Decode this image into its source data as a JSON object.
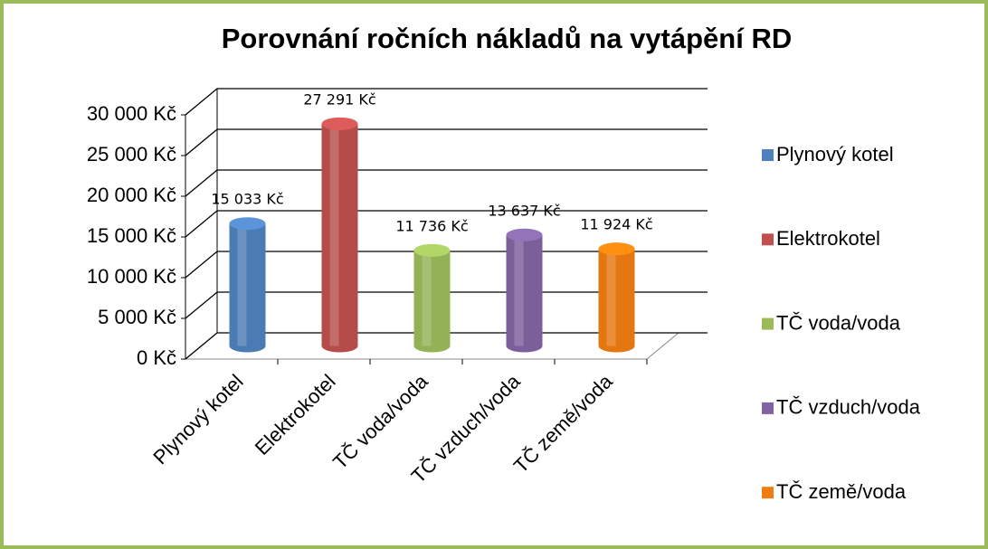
{
  "chart_data": {
    "type": "bar3d",
    "title": "Porovnání ročních nákladů na vytápění RD",
    "categories": [
      "Plynový kotel",
      "Elektrokotel",
      "TČ voda/voda",
      "TČ vzduch/voda",
      "TČ země/voda"
    ],
    "values": [
      15033,
      27291,
      11736,
      13637,
      11924
    ],
    "value_labels": [
      "15 033 Kč",
      "27 291 Kč",
      "11 736 Kč",
      "13 637 Kč",
      "11 924 Kč"
    ],
    "colors": [
      "#4f81bd",
      "#c0504d",
      "#9bbb59",
      "#8064a2",
      "#f07d10"
    ],
    "ylim": [
      0,
      30000
    ],
    "yticks": [
      {
        "value": 0,
        "label": "0 Kč"
      },
      {
        "value": 5000,
        "label": "5 000 Kč"
      },
      {
        "value": 10000,
        "label": "10 000 Kč"
      },
      {
        "value": 15000,
        "label": "15 000 Kč"
      },
      {
        "value": 20000,
        "label": "20 000 Kč"
      },
      {
        "value": 25000,
        "label": "25 000 Kč"
      },
      {
        "value": 30000,
        "label": "30 000 Kč"
      }
    ],
    "grid": true,
    "legend": "right"
  }
}
